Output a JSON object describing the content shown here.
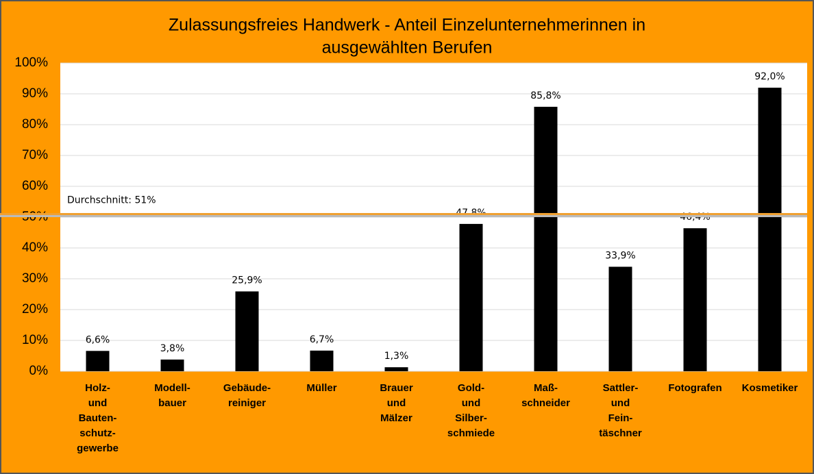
{
  "chart_data": {
    "type": "bar",
    "title": "Zulassungsfreies Handwerk - Anteil Einzelunternehmerinnen in",
    "subtitle": "ausgewählten Berufen",
    "categories": [
      "Holz-\nund\nBauten-\nschutz-\ngewerbe",
      "Modell-\nbauer",
      "Gebäude-\nreiniger",
      "Müller",
      "Brauer\nund\nMälzer",
      "Gold-\nund\nSilber-\nschmiede",
      "Maß-\nschneider",
      "Sattler-\nund\nFein-\ntäschner",
      "Fotografen",
      "Kosmetiker"
    ],
    "values": [
      6.6,
      3.8,
      25.9,
      6.7,
      1.3,
      47.8,
      85.8,
      33.9,
      46.4,
      92.0
    ],
    "value_labels": [
      "6,6%",
      "3,8%",
      "25,9%",
      "6,7%",
      "1,3%",
      "47,8%",
      "85,8%",
      "33,9%",
      "46,4%",
      "92,0%"
    ],
    "color": "#000000",
    "ylim": [
      0,
      100
    ],
    "yticks": [
      {
        "value": 0,
        "label": "0%"
      },
      {
        "value": 10,
        "label": "10%"
      },
      {
        "value": 20,
        "label": "20%"
      },
      {
        "value": 30,
        "label": "30%"
      },
      {
        "value": 40,
        "label": "40%"
      },
      {
        "value": 50,
        "label": "50%"
      },
      {
        "value": 60,
        "label": "60%"
      },
      {
        "value": 70,
        "label": "70%"
      },
      {
        "value": 80,
        "label": "80%"
      },
      {
        "value": 90,
        "label": "90%"
      },
      {
        "value": 100,
        "label": "100%"
      }
    ],
    "grid": true,
    "average": {
      "value": 51,
      "label": "Durchschnitt: 51%",
      "color": "#f0a030"
    }
  }
}
